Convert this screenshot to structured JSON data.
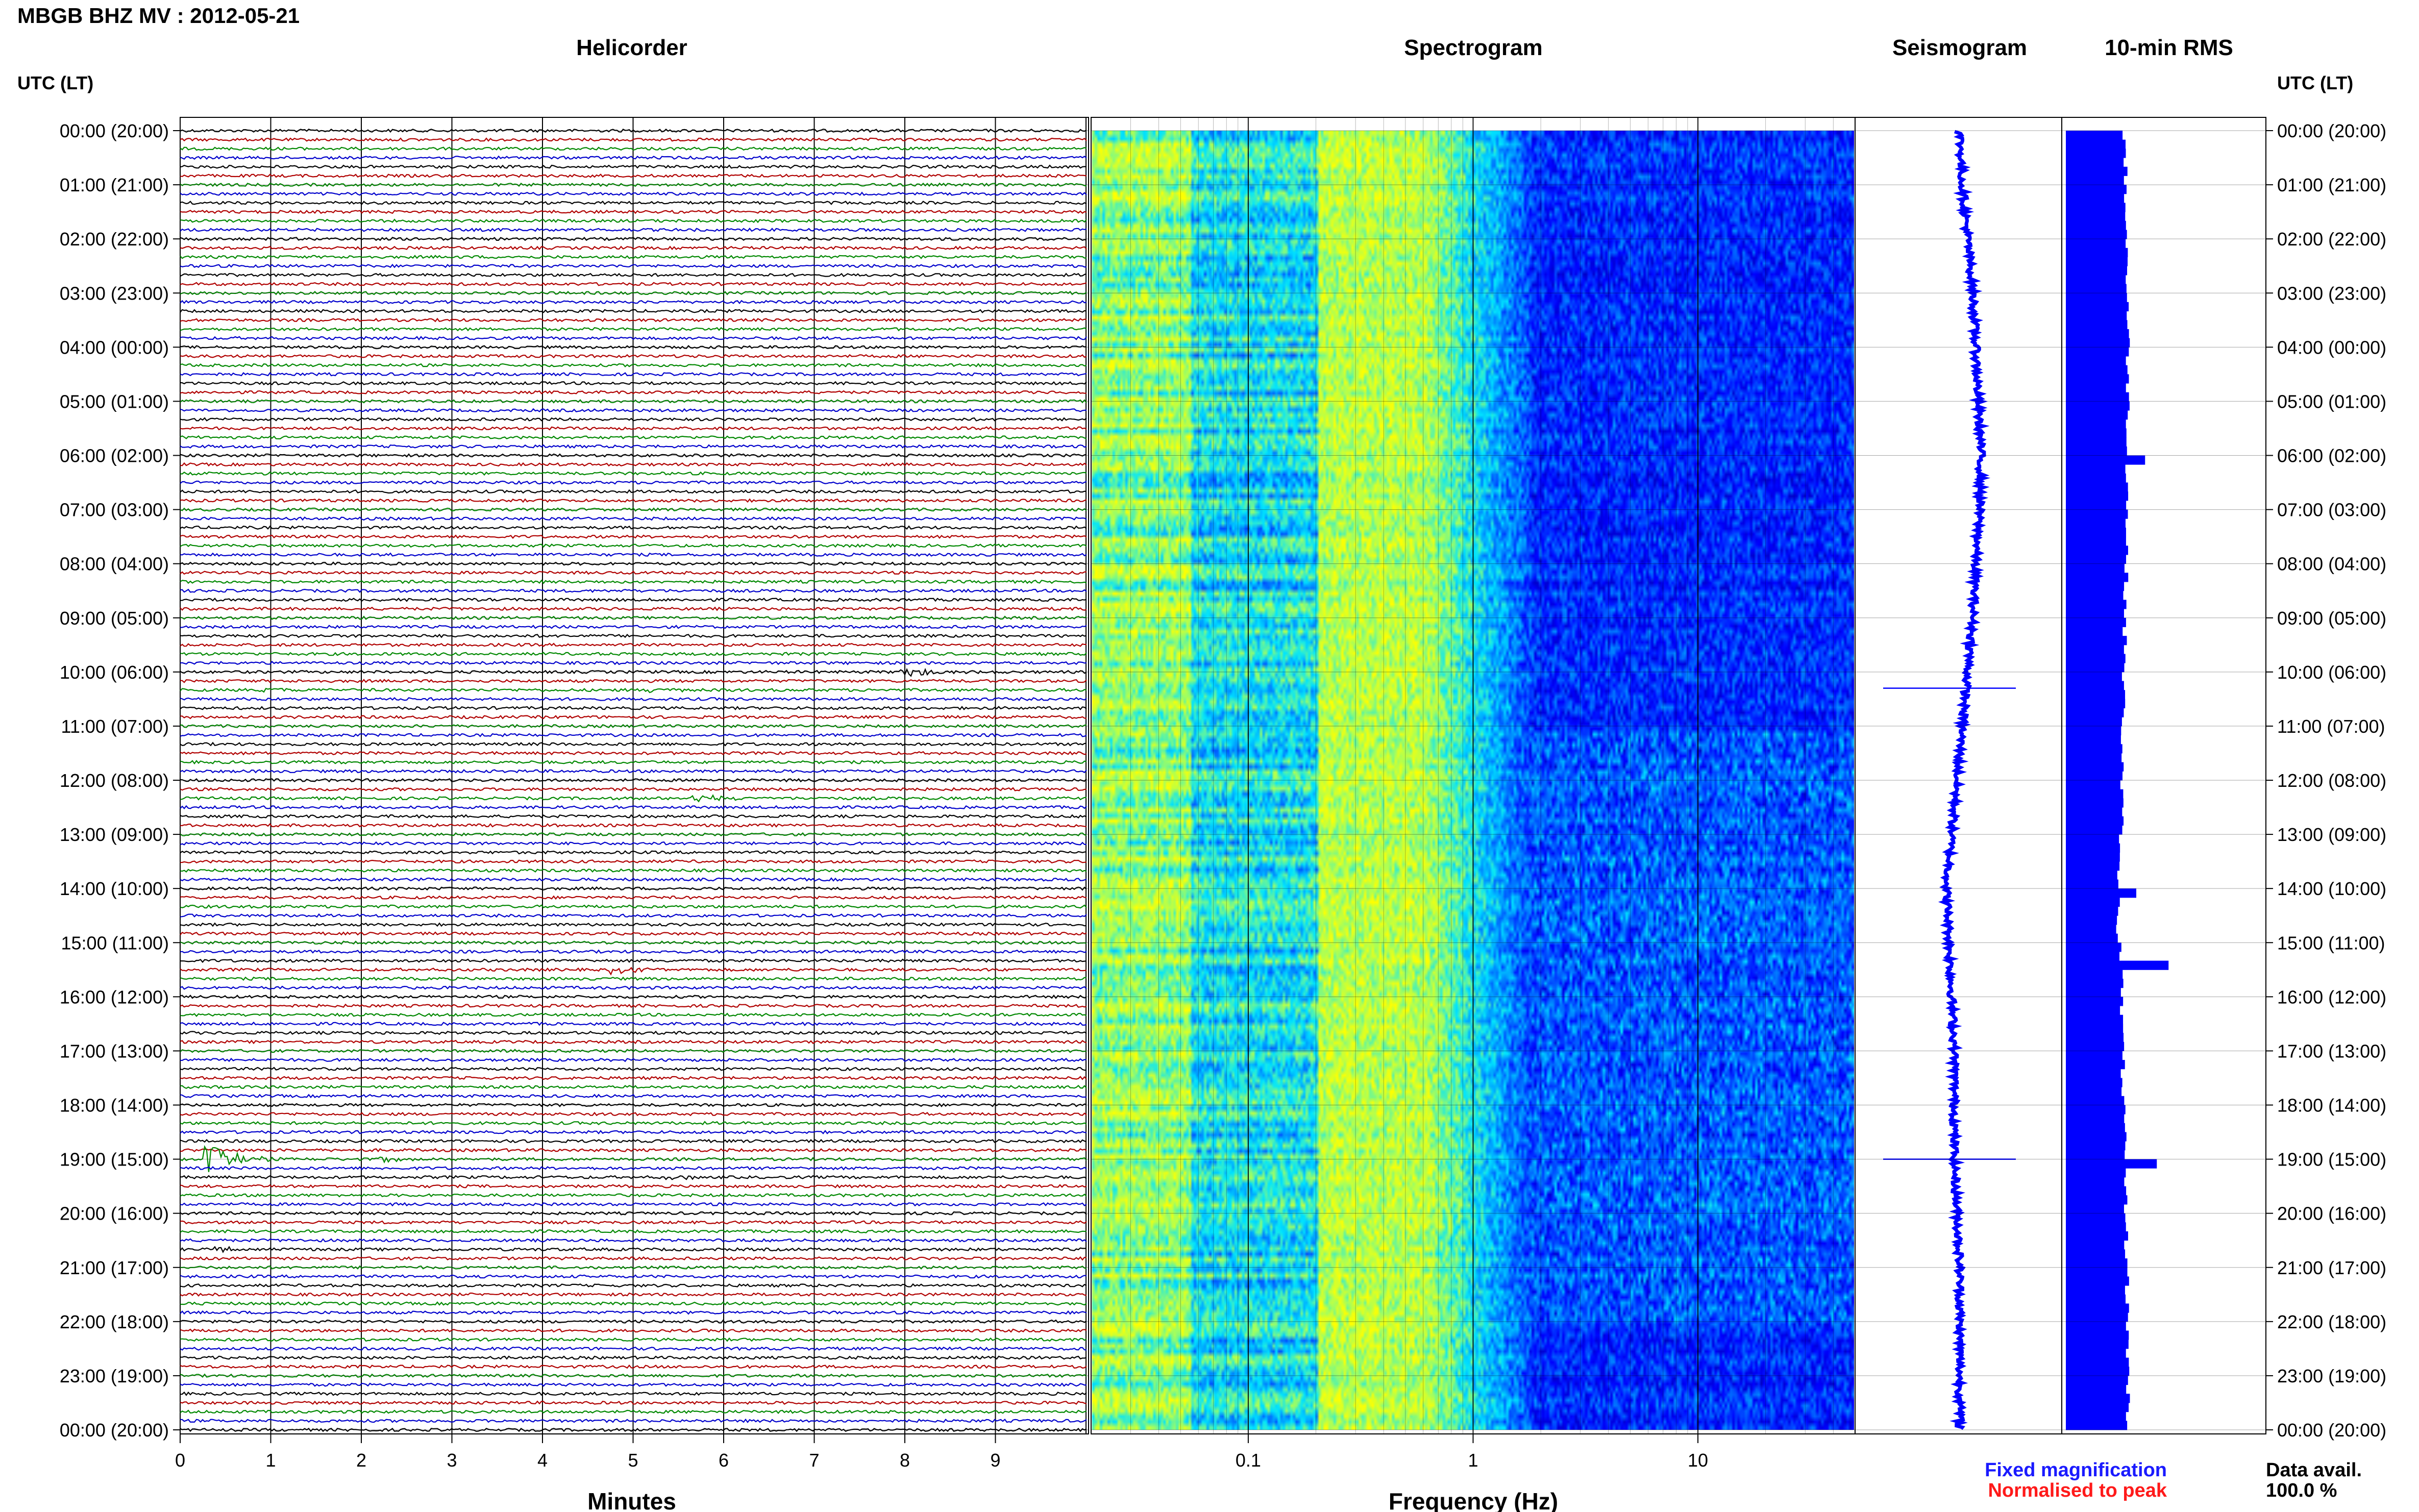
{
  "header": {
    "title": "MBGB BHZ MV : 2012-05-21"
  },
  "panels": {
    "helicorder": "Helicorder",
    "spectrogram": "Spectrogram",
    "seismogram": "Seismogram",
    "rms": "10-min RMS"
  },
  "axes": {
    "time_axis_label": "UTC (LT)",
    "minutes_label": "Minutes",
    "frequency_label": "Frequency (Hz)"
  },
  "legend": {
    "fixed": "Fixed magnification",
    "fixed_color": "#1a1aff",
    "normalised": "Normalised to peak",
    "normalised_color": "#ff1a1a",
    "data_avail_label": "Data avail.",
    "data_avail_value": "100.0 %"
  },
  "colors": {
    "trace_cycle": [
      "#000000",
      "#b00000",
      "#008800",
      "#0000cc"
    ],
    "rms_bar": "#0000ff",
    "seismogram": "#0000ff",
    "spectrogram_scale": [
      "#00008b",
      "#0000ff",
      "#0080ff",
      "#00e5ff",
      "#a8ff5a",
      "#ffff00"
    ]
  },
  "chart_data": [
    {
      "type": "line",
      "name": "Helicorder",
      "xlabel": "Minutes",
      "x_ticks": [
        0,
        1,
        2,
        3,
        4,
        5,
        6,
        7,
        8,
        9
      ],
      "xlim": [
        0,
        10
      ],
      "traces_per_hour": 6,
      "hours": [
        "00:00 (20:00)",
        "01:00 (21:00)",
        "02:00 (22:00)",
        "03:00 (23:00)",
        "04:00 (00:00)",
        "05:00 (01:00)",
        "06:00 (02:00)",
        "07:00 (03:00)",
        "08:00 (04:00)",
        "09:00 (05:00)",
        "10:00 (06:00)",
        "11:00 (07:00)",
        "12:00 (08:00)",
        "13:00 (09:00)",
        "14:00 (10:00)",
        "15:00 (11:00)",
        "16:00 (12:00)",
        "17:00 (13:00)",
        "18:00 (14:00)",
        "19:00 (15:00)",
        "20:00 (16:00)",
        "21:00 (17:00)",
        "22:00 (18:00)",
        "23:00 (19:00)",
        "00:00 (20:00)"
      ],
      "events": [
        {
          "row": 60,
          "minute": 8.0,
          "amplitude": 1.2
        },
        {
          "row": 62,
          "minute": 0.95,
          "amplitude": 0.5
        },
        {
          "row": 62,
          "minute": 5.2,
          "amplitude": 0.5
        },
        {
          "row": 74,
          "minute": 5.7,
          "amplitude": 0.8
        },
        {
          "row": 93,
          "minute": 4.8,
          "amplitude": 1.0
        },
        {
          "row": 114,
          "minute": 0.3,
          "amplitude": 4.0
        },
        {
          "row": 114,
          "minute": 2.2,
          "amplitude": 0.6
        },
        {
          "row": 116,
          "minute": 5.4,
          "amplitude": 0.5
        },
        {
          "row": 124,
          "minute": 0.4,
          "amplitude": 0.6
        }
      ]
    },
    {
      "type": "heatmap",
      "name": "Spectrogram",
      "xlabel": "Frequency (Hz)",
      "x_scale": "log",
      "x_tick_labels": [
        "0.1",
        "1",
        "10"
      ],
      "x_ticks": [
        0.1,
        1,
        10
      ],
      "xlim": [
        0.02,
        50
      ],
      "ylim_hours": [
        0,
        24
      ]
    },
    {
      "type": "line",
      "name": "Seismogram",
      "points": [
        [
          0,
          0
        ],
        [
          1,
          0.02
        ],
        [
          2,
          0.06
        ],
        [
          3,
          0.1
        ],
        [
          4,
          0.12
        ],
        [
          5,
          0.14
        ],
        [
          6,
          0.16
        ],
        [
          7,
          0.15
        ],
        [
          8,
          0.12
        ],
        [
          9,
          0.1
        ],
        [
          10,
          0.06
        ],
        [
          11,
          0.02
        ],
        [
          12,
          -0.02
        ],
        [
          13,
          -0.06
        ],
        [
          14,
          -0.1
        ],
        [
          15,
          -0.08
        ],
        [
          16,
          -0.06
        ],
        [
          17,
          -0.04
        ],
        [
          18,
          -0.04
        ],
        [
          19,
          -0.04
        ],
        [
          20,
          -0.02
        ],
        [
          21,
          0.0
        ],
        [
          22,
          0.0
        ],
        [
          23,
          0.0
        ],
        [
          24,
          0.0
        ]
      ],
      "spikes_hour": [
        10.3,
        19.0
      ]
    },
    {
      "type": "bar",
      "name": "10-min RMS",
      "orientation": "horizontal",
      "interval_minutes": 10,
      "spikes": [
        {
          "hour": 6.0,
          "value": 1.35
        },
        {
          "hour": 14.0,
          "value": 1.2
        },
        {
          "hour": 15.4,
          "value": 1.75
        },
        {
          "hour": 19.0,
          "value": 1.55
        }
      ]
    }
  ]
}
